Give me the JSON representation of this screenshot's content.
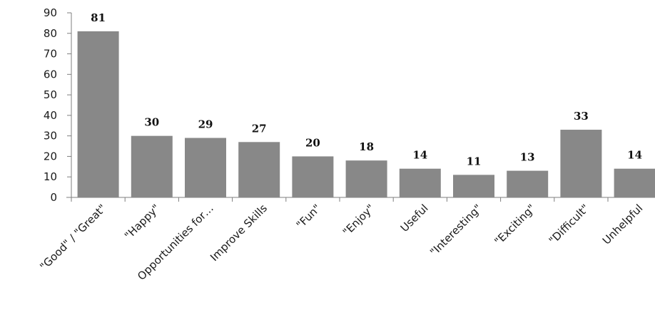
{
  "chart_data": {
    "type": "bar",
    "title": "",
    "xlabel": "",
    "ylabel": "",
    "ylim": [
      0,
      90
    ],
    "yticks": [
      0,
      10,
      20,
      30,
      40,
      50,
      60,
      70,
      80,
      90
    ],
    "grid": false,
    "bar_color": "#888888",
    "categories": [
      "\"Good\" / \"Great\"",
      "\"Happy\"",
      "Opportunities for…",
      "Improve Skills",
      "\"Fun\"",
      "\"Enjoy\"",
      "Useful",
      "\"Interesting\"",
      "\"Exciting\"",
      "\"Difficult\"",
      "Unhelpful"
    ],
    "values": [
      81,
      30,
      29,
      27,
      20,
      18,
      14,
      11,
      13,
      33,
      14
    ],
    "data_labels": [
      "81",
      "30",
      "29",
      "27",
      "20",
      "18",
      "14",
      "11",
      "13",
      "33",
      "14"
    ]
  }
}
